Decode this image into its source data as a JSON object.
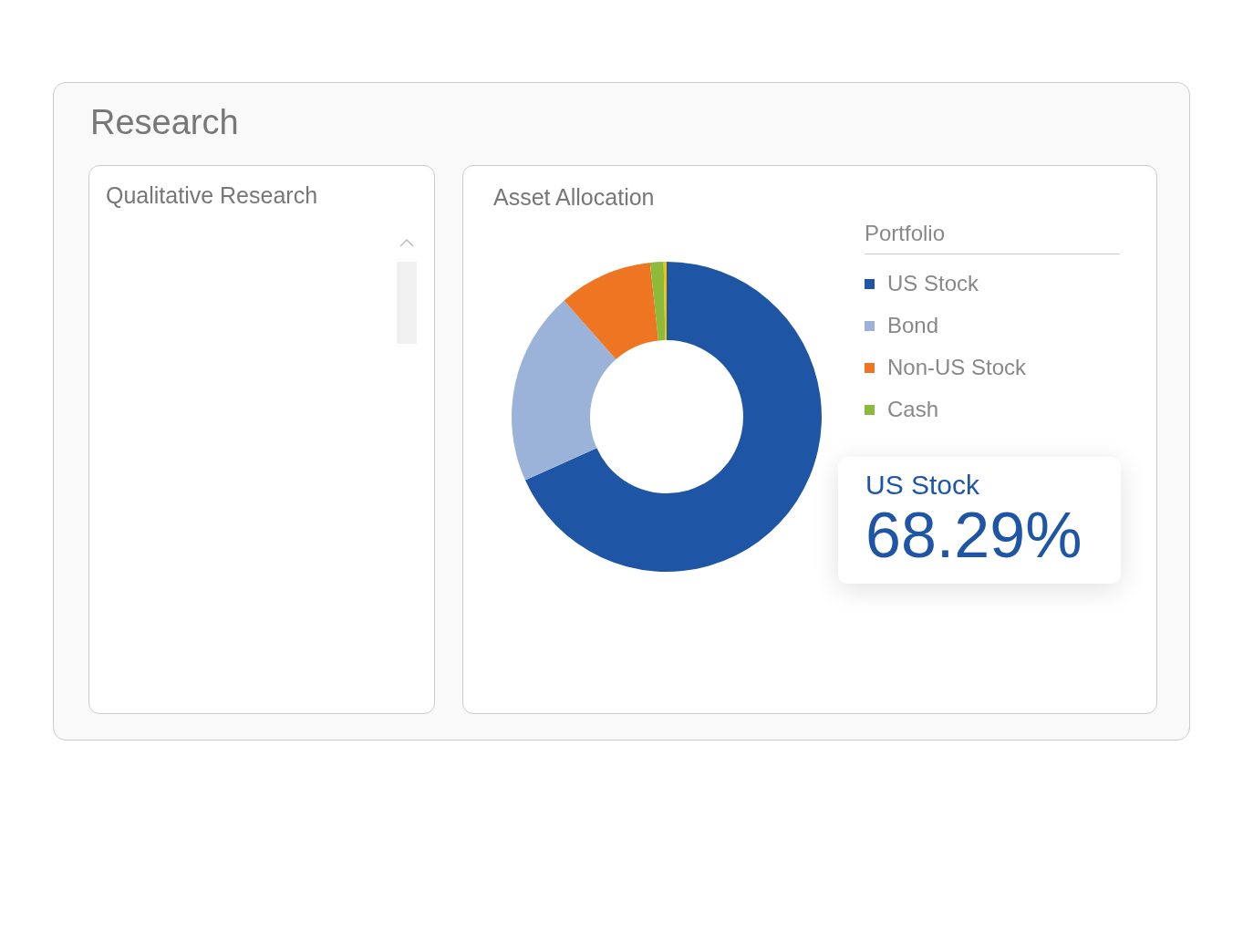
{
  "chart_data": {
    "type": "donut",
    "title": "Asset Allocation",
    "legend_title": "Portfolio",
    "categories": [
      "US Stock",
      "Bond",
      "Non-US Stock",
      "Cash",
      null
    ],
    "values": [
      68.29,
      20.2,
      9.8,
      1.4,
      0.31
    ],
    "colors": [
      "#1f55a5",
      "#9bb3d8",
      "#ee7623",
      "#8cbb3c",
      "#f2c100"
    ],
    "value_labels": [
      "68.29%",
      null,
      null,
      null,
      null
    ],
    "legend": "right",
    "annotations": [
      "Research",
      "Qualitative Research"
    ]
  }
}
